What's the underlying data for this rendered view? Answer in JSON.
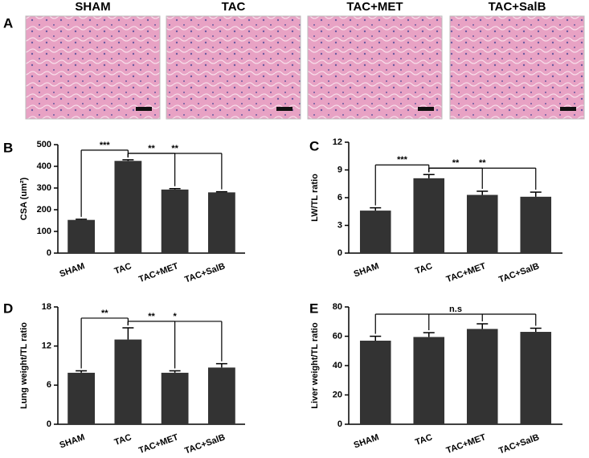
{
  "panel_a": {
    "label": "A",
    "titles": [
      "SHAM",
      "TAC",
      "TAC+MET",
      "TAC+SalB"
    ]
  },
  "chart_data": [
    {
      "type": "bar",
      "label": "B",
      "y_label": "CSA (um²)",
      "categories": [
        "SHAM",
        "TAC",
        "TAC+MET",
        "TAC+SalB"
      ],
      "values": [
        153,
        425,
        293,
        280
      ],
      "errors": [
        3,
        5,
        4,
        3
      ],
      "color": "#333333",
      "ylim": [
        0,
        500
      ],
      "yticks": [
        0,
        100,
        200,
        300,
        400,
        500
      ],
      "annotations": [
        "***",
        "**",
        "**"
      ]
    },
    {
      "type": "bar",
      "label": "C",
      "y_label": "LW/TL ratio",
      "categories": [
        "SHAM",
        "TAC",
        "TAC+MET",
        "TAC+SalB"
      ],
      "values": [
        4.6,
        8.1,
        6.3,
        6.1
      ],
      "errors": [
        0.3,
        0.4,
        0.4,
        0.5
      ],
      "color": "#333333",
      "ylim": [
        0,
        12
      ],
      "yticks": [
        0,
        3,
        6,
        9,
        12
      ],
      "annotations": [
        "***",
        "**",
        "**"
      ]
    },
    {
      "type": "bar",
      "label": "D",
      "y_label": "Lung weight/TL ratio",
      "categories": [
        "SHAM",
        "TAC",
        "TAC+MET",
        "TAC+SalB"
      ],
      "values": [
        7.9,
        13.0,
        7.9,
        8.7
      ],
      "errors": [
        0.3,
        1.8,
        0.3,
        0.6
      ],
      "color": "#333333",
      "ylim": [
        0,
        18
      ],
      "yticks": [
        0,
        6,
        12,
        18
      ],
      "annotations": [
        "**",
        "**",
        "*"
      ]
    },
    {
      "type": "bar",
      "label": "E",
      "y_label": "Liver weight/TL ratio",
      "categories": [
        "SHAM",
        "TAC",
        "TAC+MET",
        "TAC+SalB"
      ],
      "values": [
        57,
        59.5,
        65,
        63
      ],
      "errors": [
        3,
        3,
        3.5,
        2.5
      ],
      "color": "#333333",
      "ylim": [
        0,
        80
      ],
      "yticks": [
        0,
        20,
        40,
        60,
        80
      ],
      "annotations": [
        "n.s"
      ]
    }
  ]
}
